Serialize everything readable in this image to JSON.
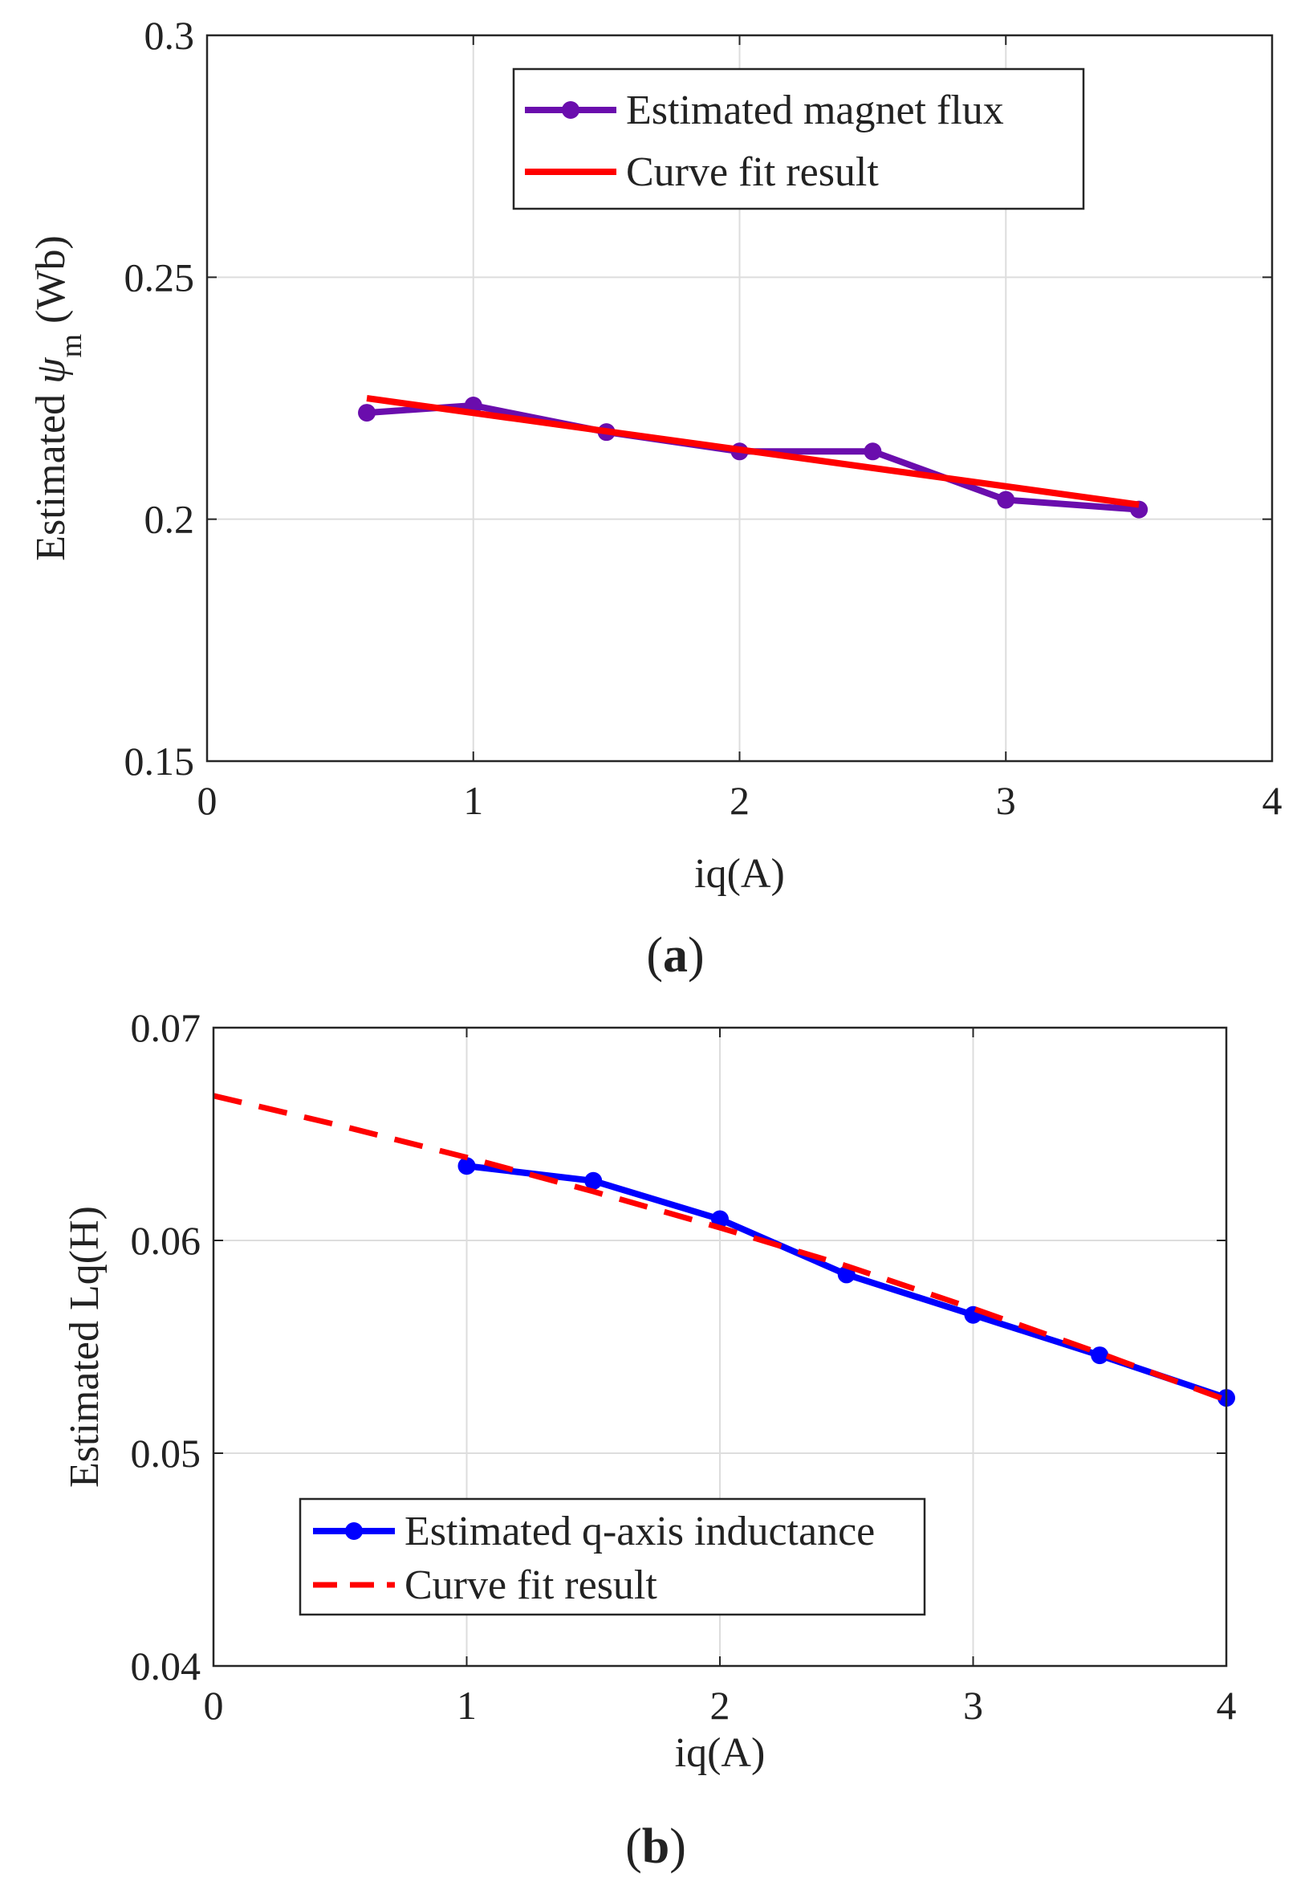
{
  "chart_data": [
    {
      "id": "a",
      "type": "line",
      "caption": {
        "open": "(",
        "letter": "a",
        "close": ")"
      },
      "xlabel": "iq(A)",
      "ylabel": {
        "prefix": "Estimated ",
        "symbol": "ψ",
        "subscript": "m",
        "suffix": " (Wb)"
      },
      "xlim": [
        0,
        4
      ],
      "ylim": [
        0.15,
        0.3
      ],
      "xticks": [
        0,
        1,
        2,
        3,
        4
      ],
      "xtick_labels": [
        "0",
        "1",
        "2",
        "3",
        "4"
      ],
      "yticks": [
        0.15,
        0.2,
        0.25,
        0.3
      ],
      "ytick_labels": [
        "0.15",
        "0.2",
        "0.25",
        "0.3"
      ],
      "grid": true,
      "legend_position": "top-right",
      "series": [
        {
          "name": "Estimated magnet flux",
          "style": "solid-marker",
          "color": "#6a0dad",
          "x": [
            0.6,
            1.0,
            1.5,
            2.0,
            2.5,
            3.0,
            3.5
          ],
          "y": [
            0.222,
            0.2235,
            0.218,
            0.214,
            0.214,
            0.204,
            0.202
          ]
        },
        {
          "name": "Curve fit result",
          "style": "solid",
          "color": "#ff0000",
          "x": [
            0.6,
            3.5
          ],
          "y": [
            0.225,
            0.203
          ]
        }
      ]
    },
    {
      "id": "b",
      "type": "line",
      "caption": {
        "open": "(",
        "letter": "b",
        "close": ")"
      },
      "xlabel": "iq(A)",
      "ylabel": {
        "prefix": "Estimated Lq(H)",
        "symbol": "",
        "subscript": "",
        "suffix": ""
      },
      "xlim": [
        0,
        4
      ],
      "ylim": [
        0.04,
        0.07
      ],
      "xticks": [
        0,
        1,
        2,
        3,
        4
      ],
      "xtick_labels": [
        "0",
        "1",
        "2",
        "3",
        "4"
      ],
      "yticks": [
        0.04,
        0.05,
        0.06,
        0.07
      ],
      "ytick_labels": [
        "0.04",
        "0.05",
        "0.06",
        "0.07"
      ],
      "grid": true,
      "legend_position": "bottom-center",
      "series": [
        {
          "name": "Estimated q-axis inductance",
          "style": "solid-marker",
          "color": "#0000ff",
          "x": [
            1.0,
            1.5,
            2.0,
            2.5,
            3.0,
            3.5,
            4.0
          ],
          "y": [
            0.0635,
            0.0628,
            0.061,
            0.0584,
            0.0565,
            0.0546,
            0.0526
          ]
        },
        {
          "name": "Curve fit result",
          "style": "dashed",
          "color": "#ff0000",
          "x": [
            0,
            0.5,
            1.0,
            1.5,
            2.0,
            2.5,
            3.0,
            3.5,
            4.0
          ],
          "y": [
            0.0668,
            0.0654,
            0.0639,
            0.0623,
            0.0606,
            0.0588,
            0.0568,
            0.0547,
            0.0525
          ]
        }
      ]
    }
  ]
}
